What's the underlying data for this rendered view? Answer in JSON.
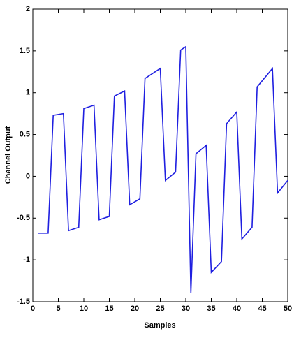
{
  "chart_data": {
    "type": "line",
    "xlabel": "Samples",
    "ylabel": "Channel Output",
    "x": [
      1,
      3,
      4,
      6,
      7,
      9,
      10,
      12,
      13,
      15,
      16,
      18,
      19,
      21,
      22,
      25,
      26,
      28,
      29,
      30,
      31,
      32,
      34,
      35,
      37,
      38,
      40,
      41,
      43,
      44,
      47,
      48,
      50
    ],
    "values": [
      -0.68,
      -0.68,
      0.73,
      0.75,
      -0.65,
      -0.61,
      0.81,
      0.85,
      -0.52,
      -0.48,
      0.96,
      1.02,
      -0.34,
      -0.27,
      1.17,
      1.29,
      -0.05,
      0.05,
      1.51,
      1.55,
      -1.4,
      0.27,
      0.37,
      -1.15,
      -1.02,
      0.63,
      0.77,
      -0.75,
      -0.61,
      1.07,
      1.29,
      -0.2,
      -0.05
    ],
    "color": "#1f1fe0",
    "xlim": [
      0,
      50
    ],
    "xticks": [
      0,
      5,
      10,
      15,
      20,
      25,
      30,
      35,
      40,
      45,
      50
    ],
    "ylim": [
      -1.5,
      2
    ],
    "yticks": [
      -1.5,
      -1,
      -0.5,
      0,
      0.5,
      1,
      1.5,
      2
    ]
  }
}
